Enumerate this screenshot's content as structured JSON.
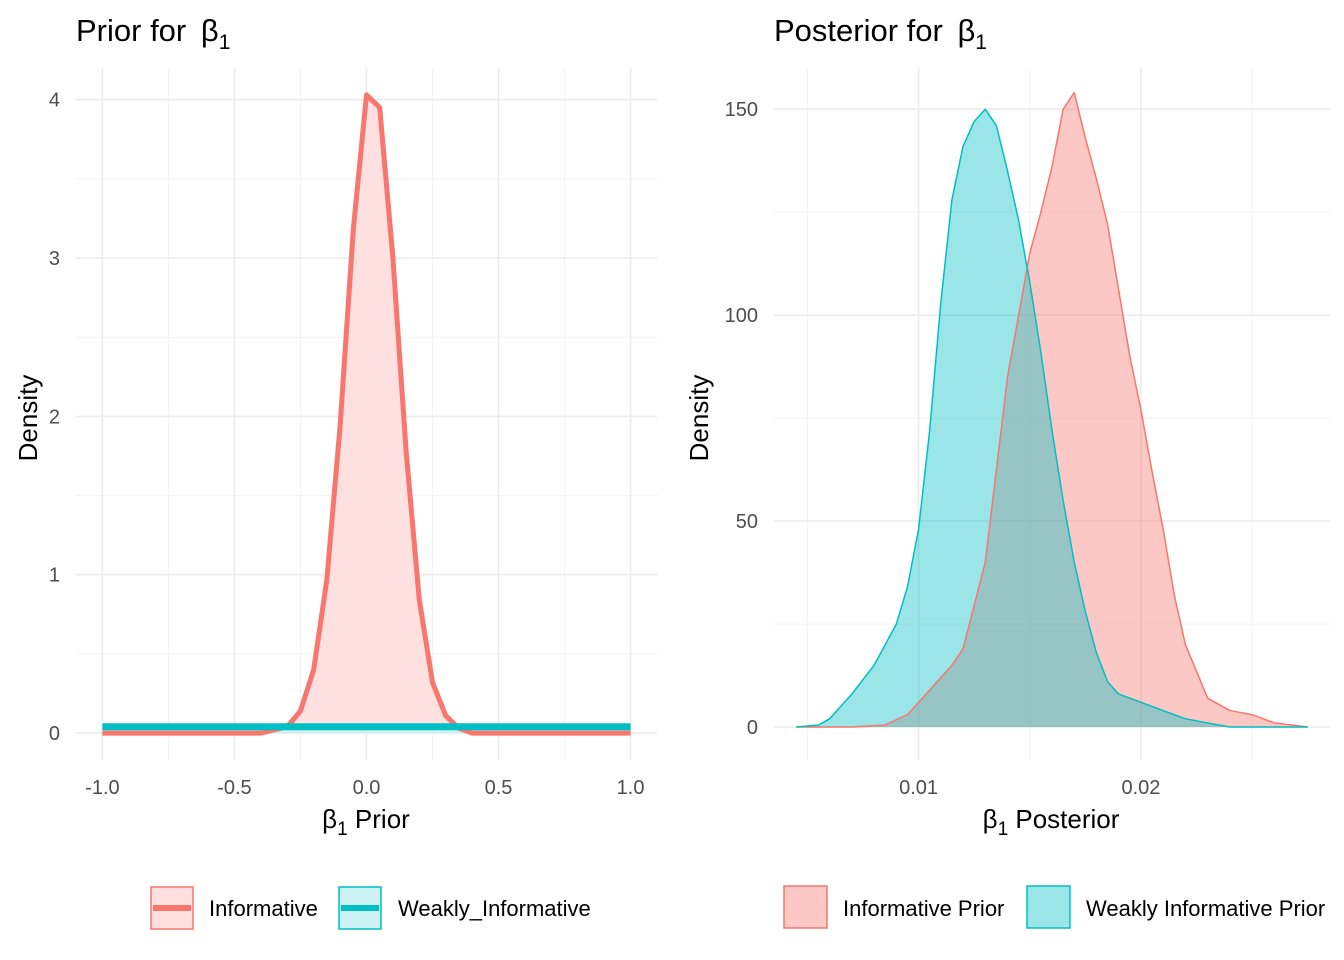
{
  "chart_data": [
    {
      "type": "area",
      "title": "Prior for ",
      "title_symbol": "β",
      "title_sub": "1",
      "xlabel_symbol": "β",
      "xlabel_sub": "1",
      "xlabel": " Prior",
      "ylabel": "Density",
      "xlim": [
        -1.1,
        1.1
      ],
      "ylim": [
        -0.17,
        4.2
      ],
      "xticks": [
        -1.0,
        -0.5,
        0.0,
        0.5,
        1.0
      ],
      "xtick_labels": [
        "-1.0",
        "-0.5",
        "0.0",
        "0.5",
        "1.0"
      ],
      "yticks": [
        0,
        1,
        2,
        3,
        4
      ],
      "ytick_labels": [
        "0",
        "1",
        "2",
        "3",
        "4"
      ],
      "grid": true,
      "legend_position": "bottom",
      "series": [
        {
          "name": "Informative",
          "color": "#F8766D",
          "fill": "#FDE0DF",
          "x": [
            -1.0,
            -0.4,
            -0.3,
            -0.25,
            -0.2,
            -0.15,
            -0.1,
            -0.05,
            0.0,
            0.05,
            0.1,
            0.15,
            0.2,
            0.25,
            0.3,
            0.35,
            0.4,
            1.0
          ],
          "y": [
            0,
            0.0,
            0.04,
            0.14,
            0.4,
            0.97,
            1.94,
            3.18,
            4.03,
            3.95,
            3.0,
            1.78,
            0.84,
            0.32,
            0.11,
            0.03,
            0.0,
            0
          ]
        },
        {
          "name": "Weakly_Informative",
          "color": "#00BFC4",
          "fill": "#CCF2F3",
          "x": [
            -1.0,
            1.0
          ],
          "y": [
            0.04,
            0.04
          ]
        }
      ]
    },
    {
      "type": "area",
      "title": "Posterior for ",
      "title_symbol": "β",
      "title_sub": "1",
      "xlabel_symbol": "β",
      "xlabel_sub": "1",
      "xlabel": " Posterior",
      "ylabel": "Density",
      "xlim": [
        0.0035,
        0.0285
      ],
      "ylim": [
        -8,
        160
      ],
      "xticks": [
        0.01,
        0.02
      ],
      "xtick_labels": [
        "0.01",
        "0.02"
      ],
      "yticks": [
        0,
        50,
        100,
        150
      ],
      "ytick_labels": [
        "0",
        "50",
        "100",
        "150"
      ],
      "grid": true,
      "legend_position": "bottom",
      "series": [
        {
          "name": "Informative Prior",
          "color": "#F8766D",
          "fill": "#F8766D",
          "x": [
            0.0045,
            0.007,
            0.0085,
            0.0095,
            0.0105,
            0.0115,
            0.012,
            0.013,
            0.014,
            0.015,
            0.0155,
            0.016,
            0.0165,
            0.017,
            0.0175,
            0.018,
            0.0185,
            0.019,
            0.0195,
            0.02,
            0.0205,
            0.021,
            0.0215,
            0.022,
            0.023,
            0.024,
            0.025,
            0.026,
            0.0275
          ],
          "y": [
            0,
            0,
            0.5,
            3,
            9,
            15,
            19,
            40,
            85,
            115,
            125,
            136,
            150,
            154,
            143,
            133,
            122,
            106,
            90,
            77,
            62,
            48,
            32,
            20,
            7,
            4,
            3,
            1,
            0
          ]
        },
        {
          "name": "Weakly Informative Prior",
          "color": "#00BFC4",
          "fill": "#00BFC4",
          "x": [
            0.0045,
            0.0055,
            0.006,
            0.007,
            0.008,
            0.009,
            0.0095,
            0.01,
            0.0105,
            0.011,
            0.0115,
            0.012,
            0.0125,
            0.013,
            0.0135,
            0.014,
            0.0145,
            0.015,
            0.0155,
            0.016,
            0.0165,
            0.017,
            0.0175,
            0.018,
            0.0185,
            0.019,
            0.0195,
            0.02,
            0.021,
            0.022,
            0.023,
            0.024,
            0.0275
          ],
          "y": [
            0,
            0.5,
            2,
            8,
            15,
            25,
            34,
            48,
            72,
            103,
            128,
            141,
            147,
            150,
            146,
            135,
            123,
            108,
            91,
            72,
            55,
            40,
            28,
            18,
            11,
            8,
            7,
            6,
            4,
            2,
            1,
            0,
            0
          ]
        }
      ]
    }
  ]
}
